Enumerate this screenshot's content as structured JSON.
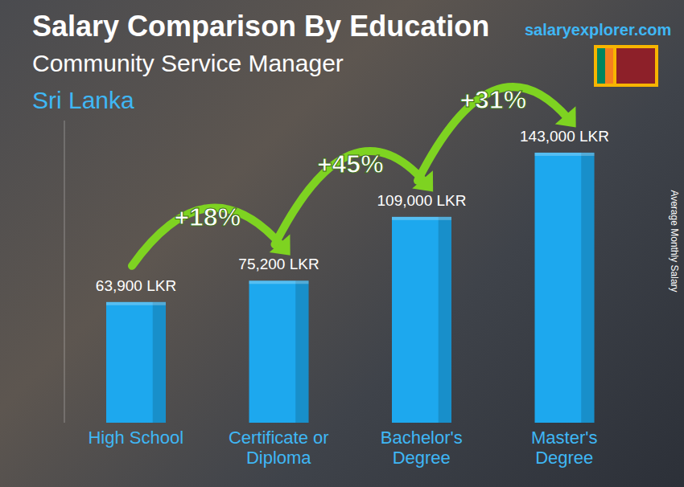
{
  "chart_data": {
    "type": "bar",
    "title": "Salary Comparison By Education",
    "subtitle": "Community Service Manager",
    "region": "Sri Lanka",
    "source": "salaryexplorer.com",
    "y_label": "Average Monthly Salary",
    "categories": [
      "High School",
      "Certificate or Diploma",
      "Bachelor's Degree",
      "Master's Degree"
    ],
    "values": [
      63900,
      75200,
      109000,
      143000
    ],
    "value_labels": [
      "63,900 LKR",
      "75,200 LKR",
      "109,000 LKR",
      "143,000 LKR"
    ],
    "annotations": [
      "+18%",
      "+45%",
      "+31%"
    ],
    "color": "#1da8ee",
    "ylim": [
      0,
      160000
    ],
    "grid": false,
    "data_labels": true,
    "tick_labels": "x"
  }
}
